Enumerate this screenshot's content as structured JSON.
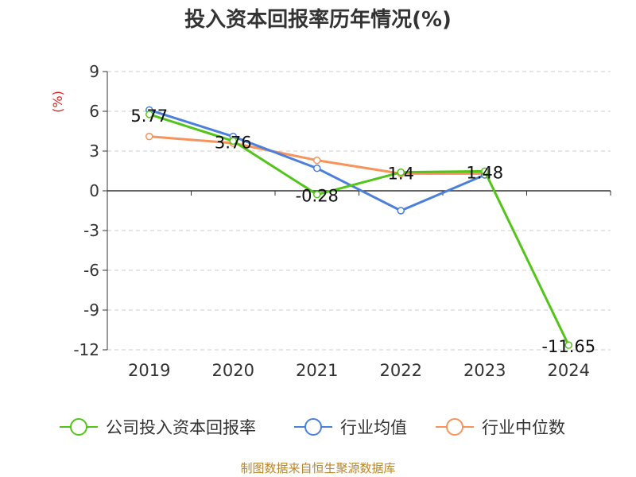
{
  "chart_data": {
    "type": "line",
    "title": "投入资本回报率历年情况(%)",
    "ylabel": "(%)",
    "xlabel": "",
    "categories": [
      "2019",
      "2020",
      "2021",
      "2022",
      "2023",
      "2024"
    ],
    "ylim": [
      -12,
      9
    ],
    "yticks": [
      9,
      6,
      3,
      0,
      -3,
      -6,
      -9,
      -12
    ],
    "grid": true,
    "legend_position": "bottom",
    "series": [
      {
        "name": "公司投入资本回报率",
        "color": "#52c41a",
        "values": [
          5.77,
          3.76,
          -0.28,
          1.4,
          1.48,
          -11.65
        ],
        "labels": [
          "5.77",
          "3.76",
          "-0.28",
          "1.4",
          "1.48",
          "-11.65"
        ]
      },
      {
        "name": "行业均值",
        "color": "#4a7fdc",
        "values": [
          6.1,
          4.1,
          1.7,
          -1.5,
          1.2,
          null
        ]
      },
      {
        "name": "行业中位数",
        "color": "#f7935c",
        "values": [
          4.1,
          3.6,
          2.3,
          1.3,
          1.3,
          null
        ]
      }
    ]
  },
  "source": "制图数据来自恒生聚源数据库"
}
